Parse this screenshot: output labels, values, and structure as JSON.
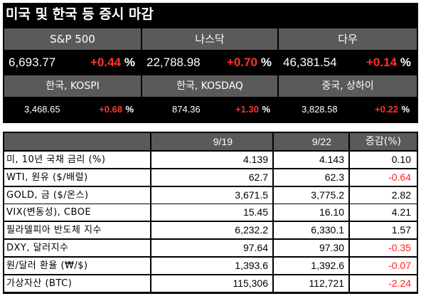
{
  "title": "미국 및 한국 등 증시 마감",
  "major_indices": [
    {
      "name": "S&P 500",
      "level": "6,693.77",
      "change": "+0.44",
      "unit": "%"
    },
    {
      "name": "나스닥",
      "level": "22,788.98",
      "change": "+0.70",
      "unit": "%"
    },
    {
      "name": "다우",
      "level": "46,381.54",
      "change": "+0.14",
      "unit": "%"
    }
  ],
  "asia_indices": [
    {
      "name": "한국, KOSPI",
      "level": "3,468.65",
      "change": "+0.68",
      "unit": "%"
    },
    {
      "name": "한국, KOSDAQ",
      "level": "874.36",
      "change": "+1.30",
      "unit": "%"
    },
    {
      "name": "중국, 상하이",
      "level": "3,828.58",
      "change": "+0.22",
      "unit": "%"
    }
  ],
  "table": {
    "headers": [
      "9/19",
      "9/22",
      "증감(%)"
    ],
    "rows": [
      {
        "label": "미, 10년 국채 금리 (%)",
        "d1": "4.139",
        "d2": "4.143",
        "chg": "0.10",
        "neg": false
      },
      {
        "label": "WTI, 원유 ($/배럴)",
        "d1": "62.7",
        "d2": "62.3",
        "chg": "-0.64",
        "neg": true
      },
      {
        "label": "GOLD, 금 ($/온스)",
        "d1": "3,671.5",
        "d2": "3,775.2",
        "chg": "2.82",
        "neg": false
      },
      {
        "label": "VIX(변동성), CBOE",
        "d1": "15.45",
        "d2": "16.10",
        "chg": "4.21",
        "neg": false
      },
      {
        "label": "필라델피아 반도체 지수",
        "d1": "6,232.2",
        "d2": "6,330.1",
        "chg": "1.57",
        "neg": false
      },
      {
        "label": "DXY, 달러지수",
        "d1": "97.64",
        "d2": "97.30",
        "chg": "-0.35",
        "neg": true
      },
      {
        "label": "원/달러 환율 (₩/$)",
        "d1": "1,393.6",
        "d2": "1,392.6",
        "chg": "-0.07",
        "neg": true
      },
      {
        "label": "가상자산 (BTC)",
        "d1": "115,306",
        "d2": "112,721",
        "chg": "-2.24",
        "neg": true
      }
    ]
  }
}
